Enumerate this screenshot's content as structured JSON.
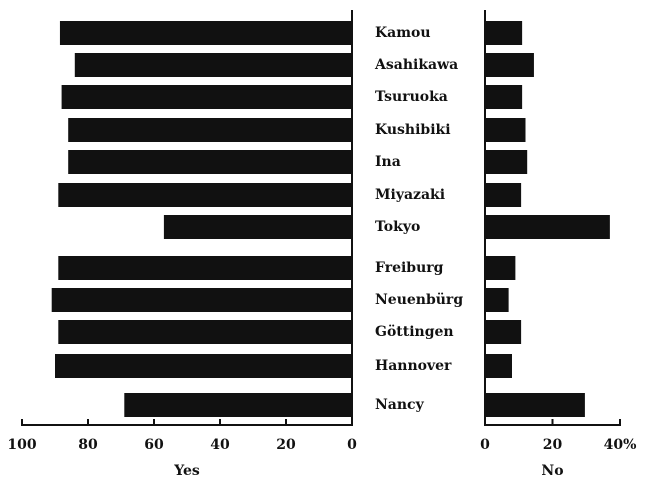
{
  "chart_data": [
    {
      "type": "bar",
      "xlabel": "Yes",
      "categories": [
        "Kamou",
        "Asahikawa",
        "Tsuruoka",
        "Kushibiki",
        "Ina",
        "Miyazaki",
        "Tokyo",
        "Freiburg",
        "Neuenbürg",
        "Göttingen",
        "Hannover",
        "Nancy"
      ],
      "values": [
        88.5,
        84,
        88,
        86,
        86,
        89,
        57,
        89,
        91,
        89,
        90,
        69
      ],
      "color": "#111111",
      "xlim": [
        100,
        0
      ],
      "xticks": [
        100,
        80,
        60,
        40,
        20,
        0
      ]
    },
    {
      "type": "bar",
      "xlabel": "No",
      "values": [
        11,
        14.5,
        11,
        12,
        12.5,
        10.7,
        37,
        9,
        7,
        10.7,
        8,
        29.6
      ],
      "color": "#111111",
      "xlim": [
        0,
        40
      ],
      "xticks": [
        0,
        20,
        {
          "value": 40,
          "label": "40%"
        }
      ]
    }
  ]
}
